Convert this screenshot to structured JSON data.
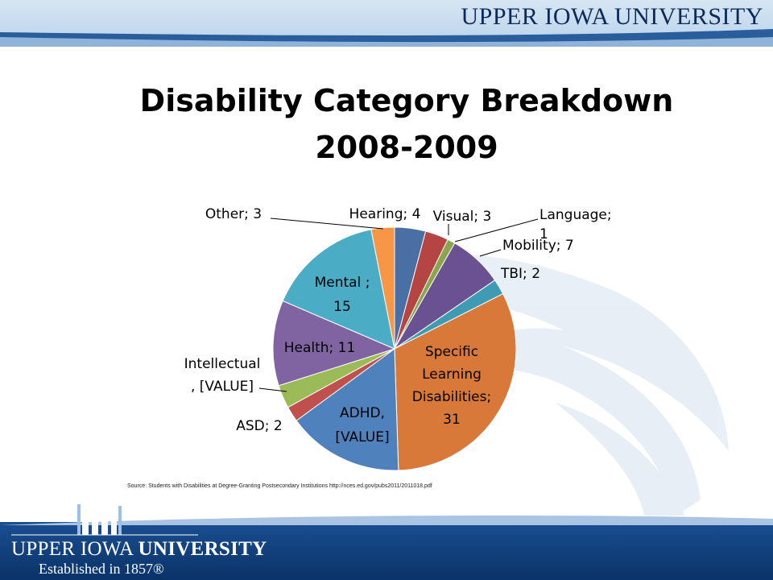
{
  "header": {
    "brand": "UPPER IOWA UNIVERSITY"
  },
  "title": {
    "line1": "Disability Category Breakdown",
    "line2": "2008-2009"
  },
  "source": "Source: Students with Disabilities at Degree-Granting Postsecondary Institutions http://nces.ed.gov/pubs2011/2011018.pdf",
  "footer": {
    "name_regular": "UPPER IOWA ",
    "name_bold": "UNIVERSITY",
    "established": "Established in 1857®"
  },
  "colors": {
    "header_blue": "#0b2a5b",
    "footer_blue": "#0d3d7a"
  },
  "chart_data": {
    "type": "pie",
    "slices": [
      {
        "label": "Hearing; 4",
        "value": 4,
        "color": "#4a6fa5"
      },
      {
        "label": "Visual; 3",
        "value": 3,
        "color": "#b54542"
      },
      {
        "label": "Language; 1",
        "value": 1,
        "color": "#8aa64c"
      },
      {
        "label": "Mobility; 7",
        "value": 7,
        "color": "#6a5191"
      },
      {
        "label": "TBI; 2",
        "value": 2,
        "color": "#3f9bb4"
      },
      {
        "label": "Specific Learning Disabilities; 31",
        "value": 31,
        "color": "#d8793a"
      },
      {
        "label": "ADHD, [VALUE]",
        "value": 15,
        "color": "#4f81bd"
      },
      {
        "label": "ASD; 2",
        "value": 2,
        "color": "#c0504d"
      },
      {
        "label": "Intellectual, [VALUE]",
        "value": 3,
        "color": "#9bbb59"
      },
      {
        "label": "Health; 11",
        "value": 11,
        "color": "#8064a2"
      },
      {
        "label": "Mental ; 15",
        "value": 15,
        "color": "#4bacc6"
      },
      {
        "label": "Other; 3",
        "value": 3,
        "color": "#f79646"
      }
    ]
  }
}
